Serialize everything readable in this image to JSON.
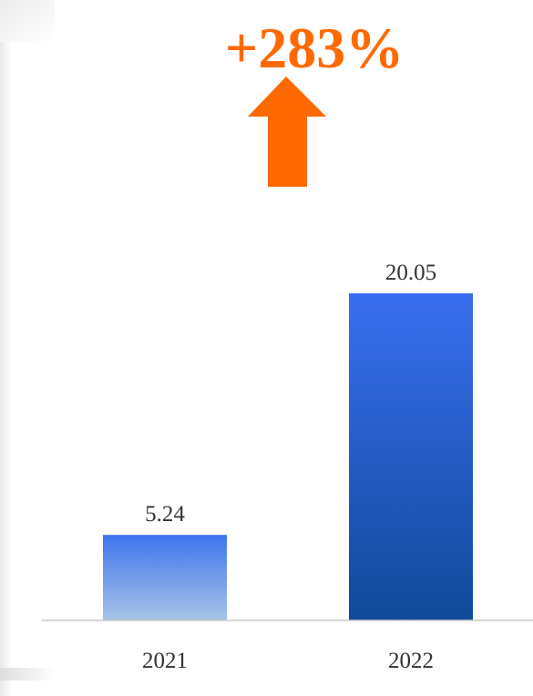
{
  "chart_data": {
    "type": "bar",
    "categories": [
      "2021",
      "2022"
    ],
    "values": [
      5.24,
      20.05
    ],
    "data_labels": [
      "5.24",
      "20.05"
    ],
    "title": "",
    "xlabel": "",
    "ylabel": "",
    "ylim": [
      0,
      20.05
    ],
    "grid": false,
    "legend": "none",
    "annotation": {
      "text": "+283%",
      "icon": "up-arrow-icon",
      "color": "#ff6a00"
    },
    "colors": {
      "bar_2021_top": "#3f74ee",
      "bar_2021_bottom": "#a7c4e6",
      "bar_2022_top": "#396ef0",
      "bar_2022_bottom": "#0f4a99",
      "axis": "#c8c8c8"
    }
  }
}
